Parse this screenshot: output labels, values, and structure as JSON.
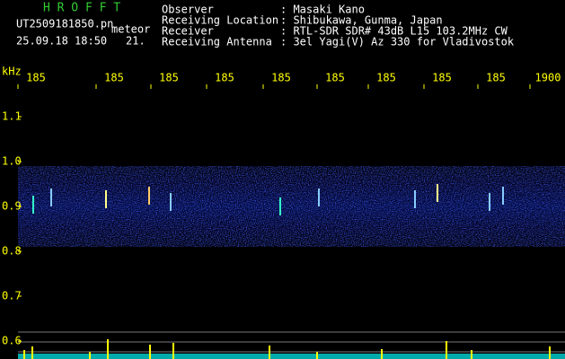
{
  "header": {
    "app": "H R O F F T",
    "file": "UT2509181850.pn",
    "mode": "meteor",
    "datetime": "25.09.18 18:50",
    "count": "21.",
    "info": [
      {
        "label": "Observer",
        "value": ": Masaki Kano"
      },
      {
        "label": "Receiving Location",
        "value": ": Shibukawa, Gunma, Japan"
      },
      {
        "label": "Receiver",
        "value": ": RTL-SDR SDR# 43dB L15 103.2MHz CW"
      },
      {
        "label": "Receiving Antenna",
        "value": ": 3el Yagi(V) Az 330 for Vladivostok"
      }
    ]
  },
  "axis": {
    "y_unit": "kHz",
    "x_labels": [
      "185",
      "185",
      "185",
      "185",
      "185",
      "185",
      "185",
      "185",
      "185",
      "1900"
    ],
    "y_labels": [
      "1.1",
      "1.0",
      "0.9",
      "0.8",
      "0.7",
      "0.6"
    ]
  }
}
